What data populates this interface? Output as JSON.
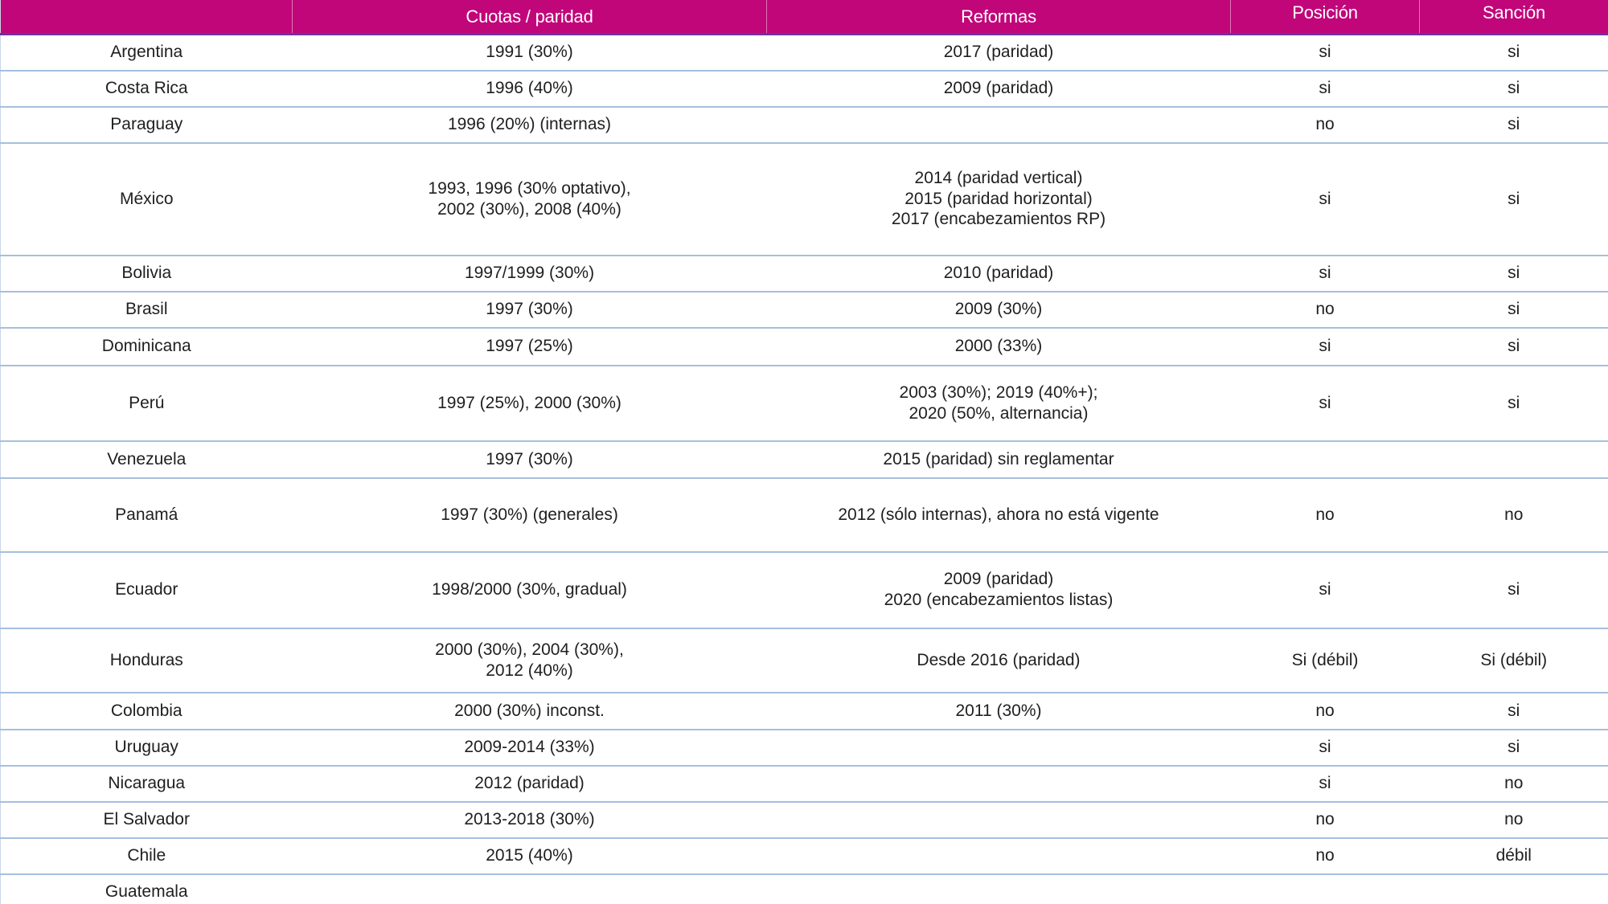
{
  "table": {
    "columns": [
      {
        "label": ""
      },
      {
        "label": "Cuotas / paridad"
      },
      {
        "label": "Reformas"
      },
      {
        "label": "Posición"
      },
      {
        "label": "Sanción"
      }
    ],
    "rows": [
      {
        "country": "Argentina",
        "cuotas": "1991 (30%)",
        "reformas": "2017 (paridad)",
        "posicion": "si",
        "sancion": "si"
      },
      {
        "country": "Costa Rica",
        "cuotas": "1996 (40%)",
        "reformas": "2009 (paridad)",
        "posicion": "si",
        "sancion": "si"
      },
      {
        "country": "Paraguay",
        "cuotas": "1996 (20%) (internas)",
        "reformas": "",
        "posicion": "no",
        "sancion": "si"
      },
      {
        "country": "México",
        "cuotas": "1993, 1996 (30% optativo),\n2002 (30%), 2008 (40%)",
        "reformas": "2014 (paridad vertical)\n2015 (paridad horizontal)\n2017 (encabezamientos RP)",
        "posicion": "si",
        "sancion": "si"
      },
      {
        "country": "Bolivia",
        "cuotas": "1997/1999 (30%)",
        "reformas": "2010 (paridad)",
        "posicion": "si",
        "sancion": "si"
      },
      {
        "country": "Brasil",
        "cuotas": "1997 (30%)",
        "reformas": "2009 (30%)",
        "posicion": "no",
        "sancion": "si"
      },
      {
        "country": "Dominicana",
        "cuotas": "1997 (25%)",
        "reformas": "2000 (33%)",
        "posicion": "si",
        "sancion": "si"
      },
      {
        "country": "Perú",
        "cuotas": "1997 (25%), 2000 (30%)",
        "reformas": "2003 (30%); 2019 (40%+);\n2020 (50%, alternancia)",
        "posicion": "si",
        "sancion": "si"
      },
      {
        "country": "Venezuela",
        "cuotas": "1997 (30%)",
        "reformas": "2015 (paridad)  sin reglamentar",
        "posicion": "",
        "sancion": ""
      },
      {
        "country": "Panamá",
        "cuotas": "1997 (30%) (generales)",
        "reformas": "2012 (sólo internas), ahora no está vigente",
        "posicion": "no",
        "sancion": "no"
      },
      {
        "country": "Ecuador",
        "cuotas": "1998/2000 (30%, gradual)",
        "reformas": "2009 (paridad)\n2020 (encabezamientos listas)",
        "posicion": "si",
        "sancion": "si"
      },
      {
        "country": "Honduras",
        "cuotas": "2000 (30%), 2004 (30%),\n2012 (40%)",
        "reformas": "Desde 2016 (paridad)",
        "posicion": "Si (débil)",
        "sancion": "Si (débil)"
      },
      {
        "country": "Colombia",
        "cuotas": "2000 (30%) inconst.",
        "reformas": "2011 (30%)",
        "posicion": "no",
        "sancion": "si"
      },
      {
        "country": "Uruguay",
        "cuotas": "2009-2014 (33%)",
        "reformas": "",
        "posicion": "si",
        "sancion": "si"
      },
      {
        "country": "Nicaragua",
        "cuotas": "2012 (paridad)",
        "reformas": "",
        "posicion": "si",
        "sancion": "no"
      },
      {
        "country": "El Salvador",
        "cuotas": "2013-2018 (30%)",
        "reformas": "",
        "posicion": "no",
        "sancion": "no"
      },
      {
        "country": "Chile",
        "cuotas": "2015 (40%)",
        "reformas": "",
        "posicion": "no",
        "sancion": "débil"
      },
      {
        "country": "Guatemala",
        "cuotas": "",
        "reformas": "",
        "posicion": "",
        "sancion": ""
      }
    ]
  },
  "colors": {
    "header_bg": "#C1067A",
    "header_text": "#FFFFFF",
    "header_border": "#7030A0",
    "row_border": "#A6BFDC",
    "table_outer_border": "#7A96C2",
    "body_text": "#202020"
  }
}
